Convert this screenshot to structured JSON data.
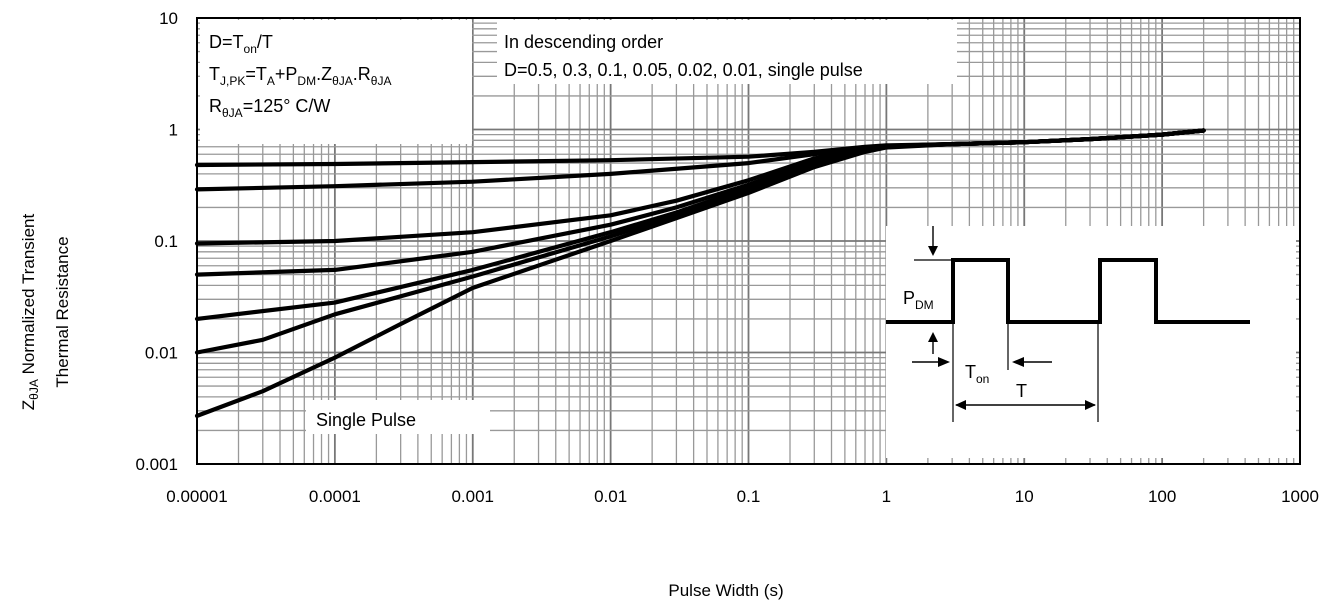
{
  "chart_data": {
    "type": "line",
    "x_scale": "log",
    "y_scale": "log",
    "xlim": [
      1e-05,
      1000
    ],
    "ylim": [
      0.001,
      10
    ],
    "grid": true,
    "x_ticks": [
      "0.00001",
      "0.0001",
      "0.001",
      "0.01",
      "0.1",
      "1",
      "10",
      "100",
      "1000"
    ],
    "y_ticks": [
      "10",
      "1",
      "0.1",
      "0.01",
      "0.001"
    ],
    "xlabel": "Pulse Width (s)",
    "ylabel_line1_main": "Z",
    "ylabel_line1_sub": "θJA",
    "ylabel_line1_rest": " Normalized Transient",
    "ylabel_line2": "Thermal Resistance",
    "series": [
      {
        "x": [
          1e-05,
          0.0001,
          0.001,
          0.01,
          0.1,
          0.3,
          0.7,
          1,
          3,
          10,
          30,
          100,
          200
        ],
        "y": [
          0.48,
          0.49,
          0.51,
          0.53,
          0.57,
          0.63,
          0.7,
          0.72,
          0.74,
          0.77,
          0.82,
          0.9,
          0.98
        ]
      },
      {
        "x": [
          1e-05,
          0.0001,
          0.001,
          0.01,
          0.1,
          0.3,
          0.7,
          1,
          3,
          10,
          30,
          100,
          200
        ],
        "y": [
          0.29,
          0.31,
          0.34,
          0.4,
          0.5,
          0.6,
          0.68,
          0.71,
          0.74,
          0.77,
          0.82,
          0.9,
          0.98
        ]
      },
      {
        "x": [
          1e-05,
          0.0001,
          0.001,
          0.01,
          0.03,
          0.1,
          0.3,
          0.7,
          1,
          3,
          10,
          30,
          100,
          200
        ],
        "y": [
          0.095,
          0.1,
          0.12,
          0.17,
          0.23,
          0.35,
          0.55,
          0.67,
          0.71,
          0.74,
          0.77,
          0.82,
          0.9,
          0.98
        ]
      },
      {
        "x": [
          1e-05,
          0.0001,
          0.001,
          0.01,
          0.03,
          0.1,
          0.3,
          0.7,
          1,
          3,
          10,
          30,
          100,
          200
        ],
        "y": [
          0.05,
          0.055,
          0.08,
          0.14,
          0.2,
          0.32,
          0.52,
          0.66,
          0.71,
          0.74,
          0.77,
          0.82,
          0.9,
          0.98
        ]
      },
      {
        "x": [
          1e-05,
          0.0001,
          0.001,
          0.01,
          0.03,
          0.1,
          0.3,
          0.7,
          1,
          3,
          10,
          30,
          100,
          200
        ],
        "y": [
          0.02,
          0.028,
          0.055,
          0.12,
          0.18,
          0.3,
          0.5,
          0.65,
          0.7,
          0.74,
          0.77,
          0.82,
          0.9,
          0.98
        ]
      },
      {
        "x": [
          1e-05,
          3e-05,
          0.0001,
          0.001,
          0.01,
          0.03,
          0.1,
          0.3,
          0.7,
          1,
          3,
          10,
          30,
          100,
          200
        ],
        "y": [
          0.01,
          0.013,
          0.022,
          0.048,
          0.11,
          0.17,
          0.28,
          0.48,
          0.64,
          0.7,
          0.74,
          0.77,
          0.82,
          0.9,
          0.98
        ]
      },
      {
        "x": [
          1e-05,
          3e-05,
          0.0001,
          0.0003,
          0.001,
          0.01,
          0.03,
          0.1,
          0.3,
          0.7,
          1,
          3,
          10,
          30,
          100,
          200
        ],
        "y": [
          0.0027,
          0.0045,
          0.009,
          0.018,
          0.038,
          0.1,
          0.16,
          0.27,
          0.46,
          0.63,
          0.69,
          0.74,
          0.77,
          0.82,
          0.9,
          0.98
        ]
      }
    ],
    "annotations": {
      "formula_d": {
        "main": "D=T",
        "sub": "on",
        "rest": "/T"
      },
      "formula_tj": {
        "p1": "T",
        "s1": "J,PK",
        "p2": "=T",
        "s2": "A",
        "p3": "+P",
        "s3": "DM",
        "p4": ".Z",
        "s4": "θJA",
        "p5": ".R",
        "s5": "θJA"
      },
      "formula_r": {
        "p1": "R",
        "s1": "θJA",
        "p2": "=125°  C/W"
      },
      "order_line1": "In descending order",
      "order_line2": "D=0.5, 0.3, 0.1, 0.05, 0.02, 0.01, single pulse",
      "single_pulse": "Single Pulse",
      "inset_pdm": {
        "main": "P",
        "sub": "DM"
      },
      "inset_ton": {
        "main": "T",
        "sub": "on"
      },
      "inset_t": "T"
    }
  }
}
